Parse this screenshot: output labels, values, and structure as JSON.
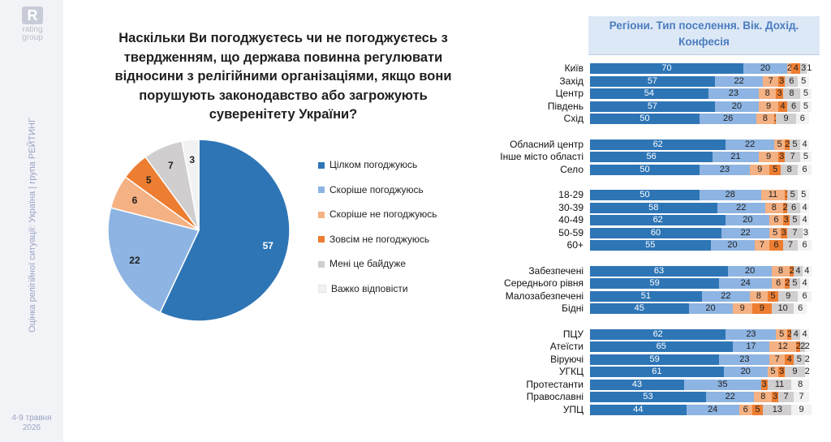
{
  "brand": {
    "logo_letter": "R",
    "logo_text": "rating\ngroup"
  },
  "sidebar": {
    "caption": "Оцінка релігійної ситуації: Україна | група РЕЙТИНГ",
    "date": "4-9 травня 2026"
  },
  "question": "Наскільки Ви погоджуєтесь чи не погоджуєтесь з твердженням, що держава повинна регулювати відносини з релігійними організаціями, якщо вони порушують законодавство або загрожують суверенітету України?",
  "colors": {
    "full_agree": "#2e75b6",
    "rather_agree": "#8db4e2",
    "rather_disagree": "#f4b183",
    "fully_disagree": "#ed7d31",
    "dont_care": "#d0cece",
    "hard_to_say": "#f2f2f2"
  },
  "chart_data": [
    {
      "type": "pie",
      "categories": [
        "Цілком погоджуюсь",
        "Скоріше погоджуюсь",
        "Скоріше не погоджуюсь",
        "Зовсім не погоджуюсь",
        "Мені це байдуже",
        "Важко відповісти"
      ],
      "values": [
        57,
        22,
        6,
        5,
        7,
        3
      ],
      "legend_position": "right"
    },
    {
      "type": "bar",
      "stacked": true,
      "orientation": "horizontal",
      "title": "Регіони. Тип поселення. Вік. Дохід. Конфесія",
      "series_names": [
        "Цілком погоджуюсь",
        "Скоріше погоджуюсь",
        "Скоріше не погоджуюсь",
        "Зовсім не погоджуюсь",
        "Мені це байдуже",
        "Важко відповісти"
      ],
      "groups": [
        {
          "rows": [
            {
              "label": "Київ",
              "values": [
                70,
                20,
                2,
                4,
                3,
                1
              ]
            },
            {
              "label": "Захід",
              "values": [
                57,
                22,
                7,
                3,
                6,
                5
              ]
            },
            {
              "label": "Центр",
              "values": [
                54,
                23,
                8,
                3,
                8,
                5
              ]
            },
            {
              "label": "Південь",
              "values": [
                57,
                20,
                9,
                4,
                6,
                5
              ]
            },
            {
              "label": "Схід",
              "values": [
                50,
                26,
                8,
                1,
                9,
                6
              ]
            }
          ]
        },
        {
          "rows": [
            {
              "label": "Обласний центр",
              "values": [
                62,
                22,
                5,
                2,
                5,
                4
              ]
            },
            {
              "label": "Інше місто області",
              "values": [
                56,
                21,
                9,
                3,
                7,
                5
              ]
            },
            {
              "label": "Село",
              "values": [
                50,
                23,
                9,
                5,
                8,
                6
              ]
            }
          ]
        },
        {
          "rows": [
            {
              "label": "18-29",
              "values": [
                50,
                28,
                11,
                1,
                5,
                5
              ]
            },
            {
              "label": "30-39",
              "values": [
                58,
                22,
                8,
                2,
                6,
                4
              ]
            },
            {
              "label": "40-49",
              "values": [
                62,
                20,
                6,
                3,
                5,
                4
              ]
            },
            {
              "label": "50-59",
              "values": [
                60,
                22,
                5,
                3,
                7,
                3
              ]
            },
            {
              "label": "60+",
              "values": [
                55,
                20,
                7,
                6,
                7,
                6
              ]
            }
          ]
        },
        {
          "rows": [
            {
              "label": "Забезпечені",
              "values": [
                63,
                20,
                8,
                2,
                4,
                4
              ]
            },
            {
              "label": "Середнього рівня",
              "values": [
                59,
                24,
                6,
                2,
                5,
                4
              ]
            },
            {
              "label": "Малозабезпечені",
              "values": [
                51,
                22,
                8,
                5,
                9,
                6
              ]
            },
            {
              "label": "Бідні",
              "values": [
                45,
                20,
                9,
                9,
                10,
                6
              ]
            }
          ]
        },
        {
          "rows": [
            {
              "label": "ПЦУ",
              "values": [
                62,
                23,
                5,
                2,
                4,
                4
              ]
            },
            {
              "label": "Атеїсти",
              "values": [
                65,
                17,
                12,
                2,
                2,
                2
              ]
            },
            {
              "label": "Віруючі",
              "values": [
                59,
                23,
                7,
                4,
                5,
                2
              ]
            },
            {
              "label": "УГКЦ",
              "values": [
                61,
                20,
                5,
                3,
                9,
                2
              ]
            },
            {
              "label": "Протестанти",
              "values": [
                43,
                35,
                0,
                3,
                11,
                8
              ]
            },
            {
              "label": "Православні",
              "values": [
                53,
                22,
                8,
                3,
                7,
                7
              ]
            },
            {
              "label": "УПЦ",
              "values": [
                44,
                24,
                6,
                5,
                13,
                9
              ]
            }
          ]
        }
      ]
    }
  ]
}
